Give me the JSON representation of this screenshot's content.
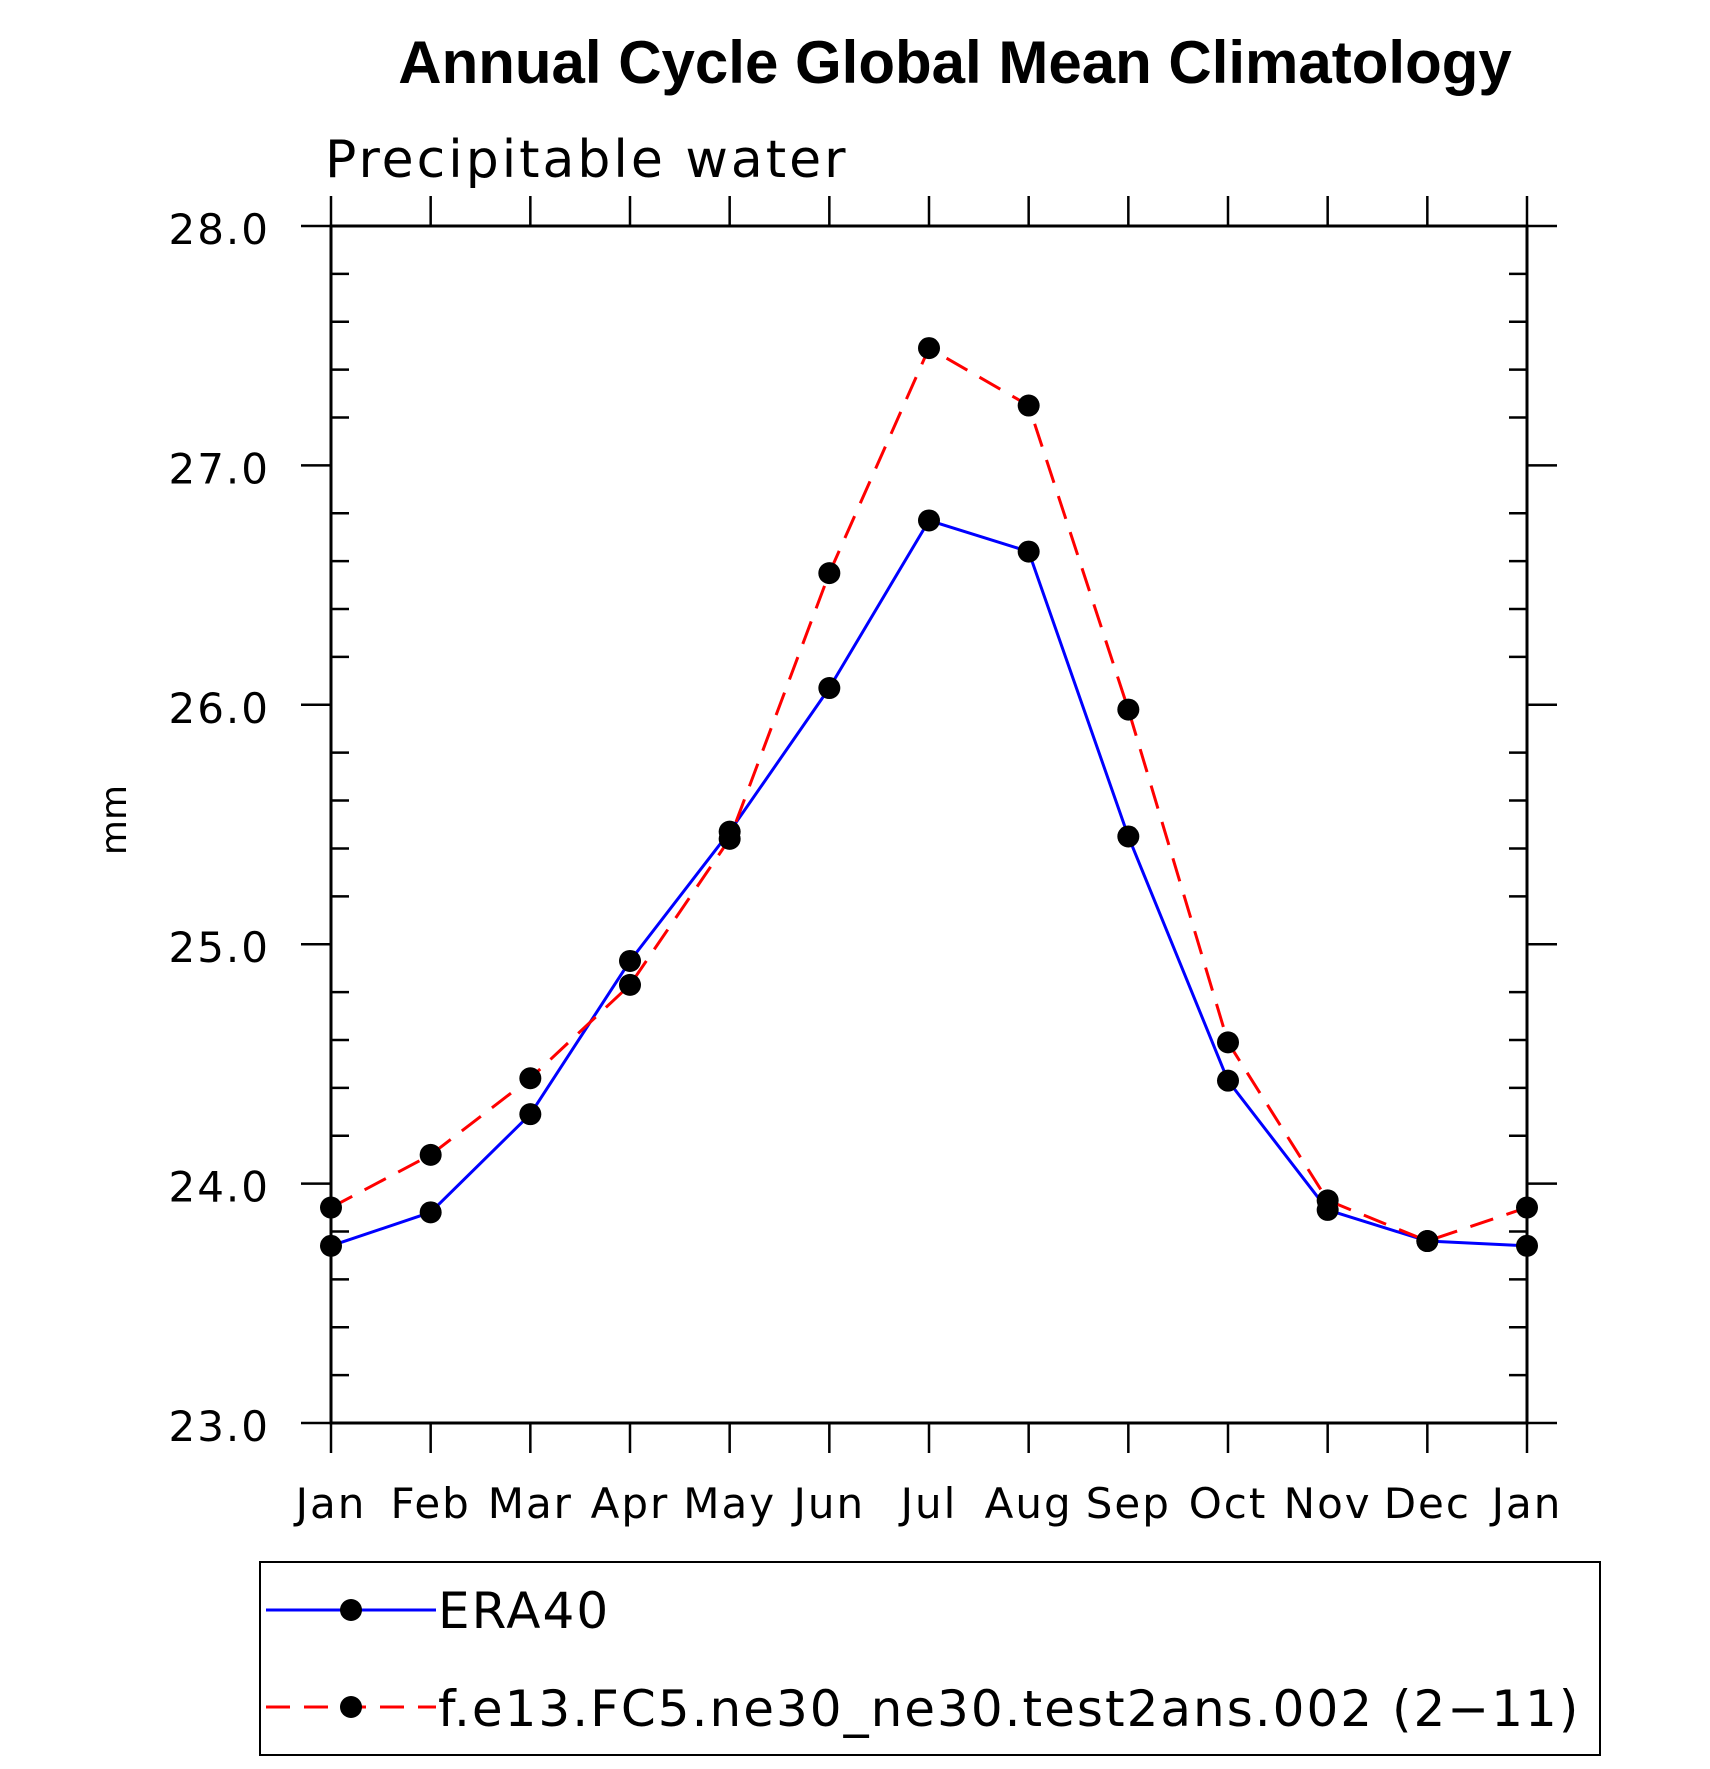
{
  "chart_data": {
    "type": "line",
    "title": "Annual Cycle Global Mean Climatology",
    "subtitle": "Precipitable water",
    "xlabel": "",
    "ylabel": "mm",
    "categories": [
      "Jan",
      "Feb",
      "Mar",
      "Apr",
      "May",
      "Jun",
      "Jul",
      "Aug",
      "Sep",
      "Oct",
      "Nov",
      "Dec",
      "Jan"
    ],
    "ylim": [
      23.0,
      28.0
    ],
    "yticks": [
      "23.0",
      "24.0",
      "25.0",
      "26.0",
      "27.0",
      "28.0"
    ],
    "grid": false,
    "legend_position": "bottom",
    "series": [
      {
        "name": "ERA40",
        "color": "#0000ff",
        "line_style": "solid",
        "values": [
          23.74,
          23.88,
          24.29,
          24.93,
          25.47,
          26.07,
          26.77,
          26.64,
          25.45,
          24.43,
          23.89,
          23.76,
          23.74
        ]
      },
      {
        "name": "f.e13.FC5.ne30_ne30.test2ans.002 (2−11)",
        "color": "#ff0000",
        "line_style": "dashed",
        "values": [
          23.9,
          24.12,
          24.44,
          24.83,
          25.44,
          26.55,
          27.49,
          27.25,
          25.98,
          24.59,
          23.93,
          23.76,
          23.9
        ]
      }
    ]
  }
}
